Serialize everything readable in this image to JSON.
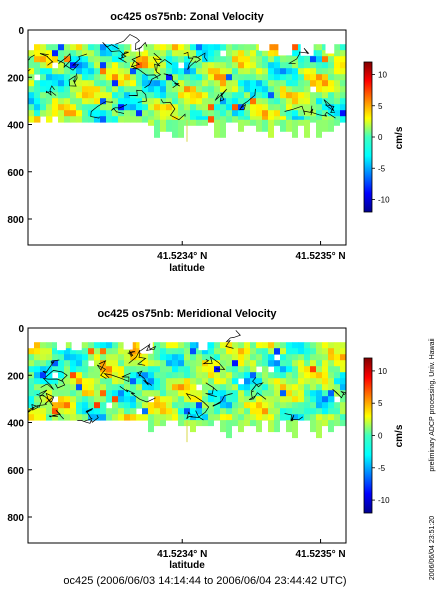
{
  "chart_data": [
    {
      "type": "heatmap",
      "title": "oc425 os75nb: Zonal Velocity",
      "xlabel": "latitude",
      "ylabel": "",
      "x_tick_labels": [
        "41.5234° N",
        "41.5235° N"
      ],
      "y_tick_labels": [
        "0",
        "200",
        "400",
        "600",
        "800"
      ],
      "y_ticks": [
        0,
        200,
        400,
        600,
        800
      ],
      "ylim": [
        0,
        910
      ],
      "y_inverted": true,
      "data_depth_range": [
        60,
        380
      ],
      "colorbar": {
        "label": "cm/s",
        "ticks": [
          10,
          5,
          0,
          -5,
          -10
        ],
        "tick_labels": [
          "10",
          "5",
          "0",
          "-5",
          "-10"
        ],
        "range": [
          -12,
          12
        ],
        "colormap": "jet"
      }
    },
    {
      "type": "heatmap",
      "title": "oc425 os75nb: Meridional Velocity",
      "xlabel": "latitude",
      "ylabel": "",
      "x_tick_labels": [
        "41.5234° N",
        "41.5235° N"
      ],
      "y_tick_labels": [
        "0",
        "200",
        "400",
        "600",
        "800"
      ],
      "y_ticks": [
        0,
        200,
        400,
        600,
        800
      ],
      "ylim": [
        0,
        910
      ],
      "y_inverted": true,
      "data_depth_range": [
        60,
        390
      ],
      "colorbar": {
        "label": "cm/s",
        "ticks": [
          10,
          5,
          0,
          -5,
          -10
        ],
        "tick_labels": [
          "10",
          "5",
          "0",
          "-5",
          "-10"
        ],
        "range": [
          -12,
          12
        ],
        "colormap": "jet"
      }
    }
  ],
  "side_note": "preliminary ADCP processing,   Univ. Hawaii",
  "timestamp": "2006/06/04 23:51:20",
  "footer": "oc425 (2006/06/03 14:14:44 to 2006/06/04 23:44:42 UTC)"
}
